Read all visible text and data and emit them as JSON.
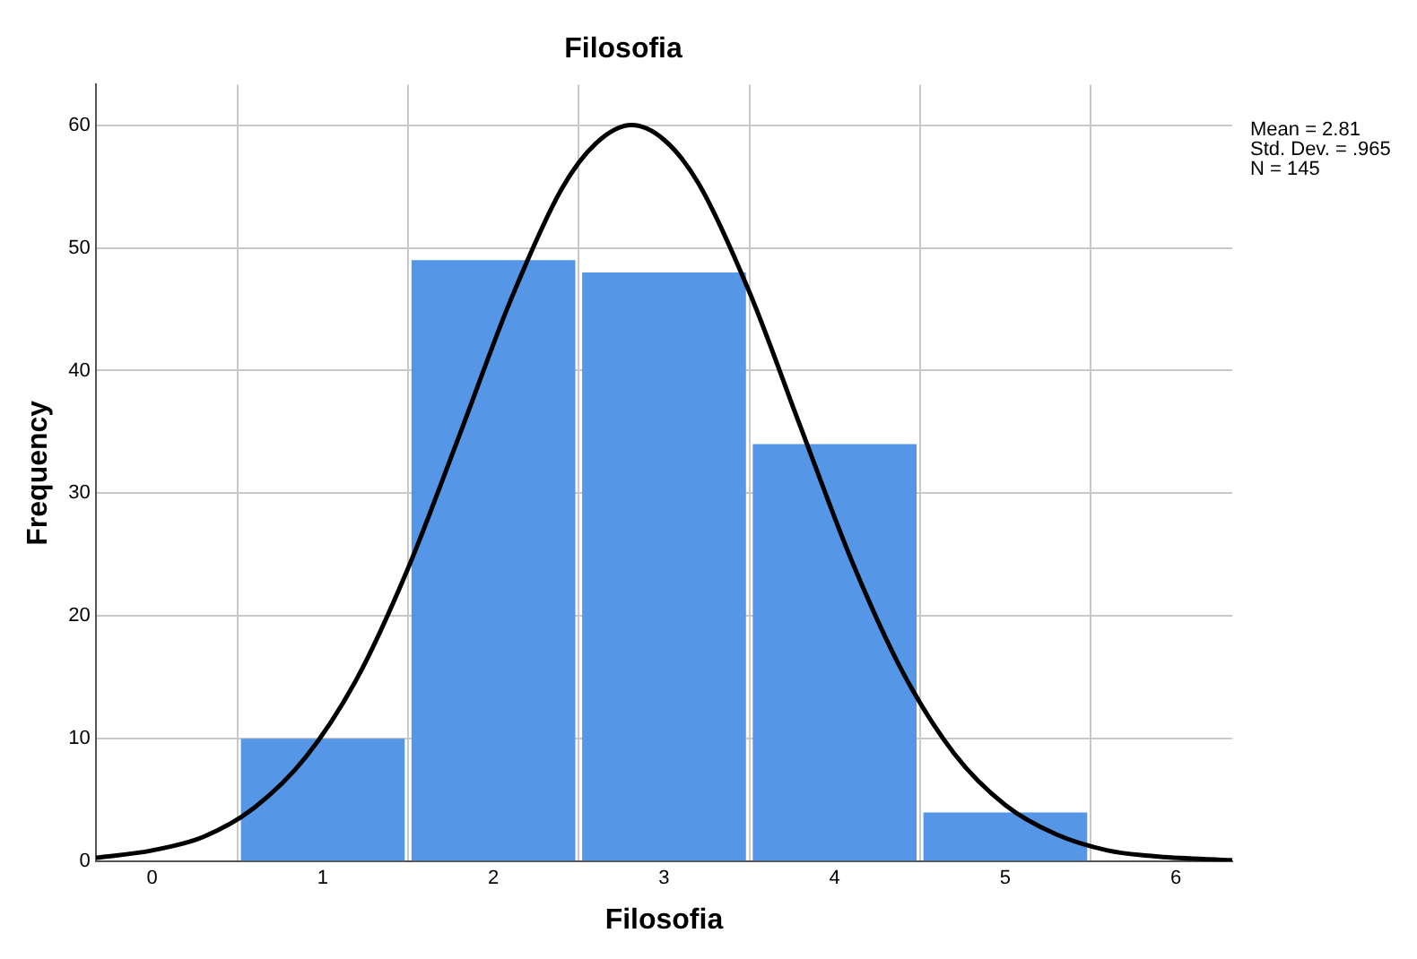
{
  "chart_data": {
    "type": "histogram",
    "title": "Filosofia",
    "xlabel": "Filosofia",
    "ylabel": "Frequency",
    "bins": [
      0.5,
      1.5,
      2.5,
      3.5,
      4.5,
      5.5
    ],
    "series": [
      {
        "color": "#5596e6",
        "values": [
          10,
          49,
          48,
          34,
          4
        ]
      },
      {
        "type": "line",
        "color": "#000000",
        "x": [
          -0.33,
          0,
          0.3,
          0.6,
          0.9,
          1.2,
          1.5,
          1.8,
          2.1,
          2.4,
          2.6,
          2.81,
          3.0,
          3.2,
          3.5,
          3.8,
          4.1,
          4.4,
          4.7,
          5.0,
          5.3,
          5.6,
          5.9,
          6.33
        ],
        "values": [
          0.3,
          0.9,
          2,
          4.4,
          8.5,
          14.9,
          23.9,
          34.7,
          45.7,
          54.8,
          58.5,
          60,
          58.8,
          55.3,
          46.4,
          35.4,
          24.5,
          15.4,
          8.8,
          4.6,
          2.2,
          0.9,
          0.4,
          0.1
        ]
      }
    ],
    "xlim": [
      -0.33,
      6.33
    ],
    "xticks": [
      0,
      1,
      2,
      3,
      4,
      5,
      6
    ],
    "ylim": [
      0,
      63.3
    ],
    "yticks": [
      0,
      10,
      20,
      30,
      40,
      50,
      60
    ],
    "grid": true,
    "legend": false,
    "marker": "none",
    "line_style": "solid",
    "annotations": [
      "Mean = 2.81",
      "Std. Dev. = .965",
      "N = 145"
    ]
  }
}
